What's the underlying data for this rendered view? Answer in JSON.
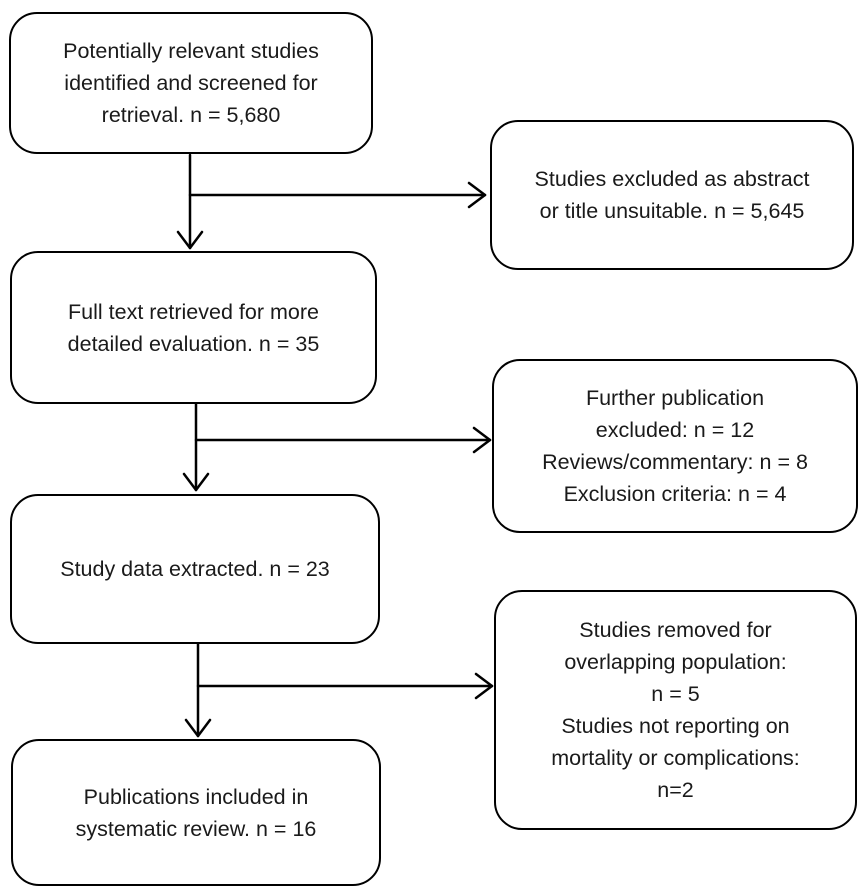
{
  "main_flow": {
    "identified": {
      "lines": [
        "Potentially relevant studies",
        "identified and screened for",
        "retrieval. n = 5,680"
      ]
    },
    "full_text": {
      "lines": [
        "Full text retrieved for more",
        "detailed evaluation. n = 35"
      ]
    },
    "extracted": {
      "lines": [
        "Study data extracted. n = 23"
      ]
    },
    "included": {
      "lines": [
        "Publications included in",
        "systematic review. n = 16"
      ]
    }
  },
  "exclusions": {
    "abstract_title": {
      "lines": [
        "Studies excluded as abstract",
        "or title unsuitable. n = 5,645"
      ]
    },
    "further": {
      "lines": [
        "Further publication",
        "excluded: n = 12",
        "Reviews/commentary: n = 8",
        "Exclusion criteria: n = 4"
      ]
    },
    "removed": {
      "lines": [
        "Studies removed for",
        "overlapping population:",
        "n = 5",
        "Studies not reporting on",
        "mortality or complications:",
        "n=2"
      ]
    }
  },
  "colors": {
    "stroke": "#000000",
    "text": "#1a1a1a",
    "background": "#ffffff"
  }
}
